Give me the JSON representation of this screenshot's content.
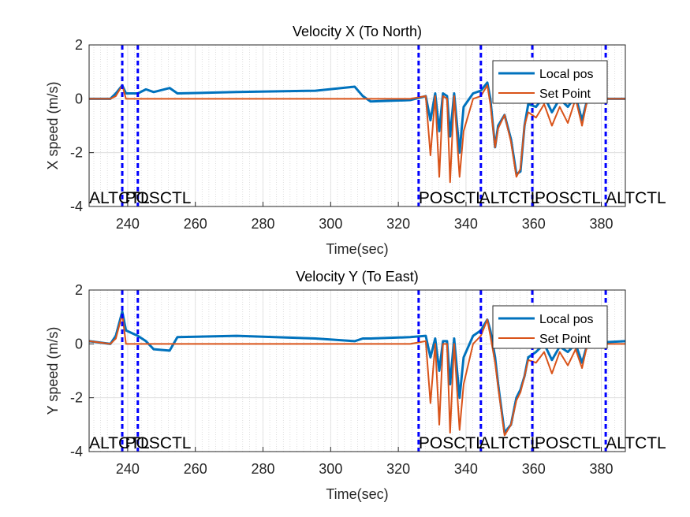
{
  "chart_data": [
    {
      "type": "line",
      "title": "Velocity X (To North)",
      "xlabel": "Time(sec)",
      "ylabel": "X speed (m/s)",
      "x": [
        228.6,
        234.9,
        236.5,
        238.4,
        239.5,
        243.0,
        245.4,
        247.7,
        252.4,
        254.7,
        272.2,
        295.5,
        307.1,
        309.5,
        311.8,
        323.5,
        328.1,
        329.5,
        330.9,
        332.1,
        333.2,
        334.4,
        335.3,
        336.5,
        338.1,
        339.3,
        342.1,
        344.4,
        346.3,
        347.2,
        348.6,
        349.5,
        351.4,
        353.3,
        354.9,
        356.1,
        357.3,
        358.4,
        360.7,
        363.1,
        365.4,
        367.7,
        370.1,
        372.4,
        374.3,
        375.9,
        379.4,
        387.1
      ],
      "series": [
        {
          "name": "Local pos",
          "color": "#0072bd",
          "values": [
            0,
            0,
            0.2,
            0.5,
            0.2,
            0.2,
            0.35,
            0.25,
            0.4,
            0.2,
            0.25,
            0.3,
            0.45,
            0.1,
            -0.1,
            -0.05,
            0.1,
            -0.8,
            0.2,
            -1.2,
            0.2,
            0.1,
            -1.4,
            0.2,
            -2.0,
            -0.3,
            0.2,
            0.3,
            0.6,
            0,
            -1.8,
            -1.0,
            -0.6,
            -1.5,
            -2.8,
            -2.7,
            -1.0,
            -0.2,
            -0.3,
            0.1,
            -0.5,
            0,
            -0.3,
            0.1,
            -0.8,
            0,
            0,
            0
          ]
        },
        {
          "name": "Set Point",
          "color": "#d95319",
          "values": [
            0,
            0,
            0.1,
            0.5,
            0,
            0,
            0,
            0,
            0,
            0,
            0,
            0,
            0,
            0,
            0,
            0,
            0.1,
            -2.1,
            0.1,
            -2.9,
            0.1,
            0,
            -3.1,
            0.1,
            -2.9,
            -1.2,
            0,
            0.1,
            0.5,
            -0.2,
            -1.8,
            -1.1,
            -0.6,
            -1.6,
            -2.9,
            -2.6,
            -1.0,
            -0.5,
            -0.7,
            -0.2,
            -1.0,
            -0.3,
            -0.9,
            0,
            -1.0,
            0,
            0,
            0
          ]
        }
      ],
      "xlim": [
        228.6,
        387.1
      ],
      "xticks": [
        240,
        260,
        280,
        300,
        320,
        340,
        360,
        380
      ],
      "ylim": [
        -4,
        2
      ],
      "yticks": [
        -4,
        -2,
        0,
        2
      ],
      "grid": true,
      "minor_grid": true,
      "legend": "northeast",
      "mode_lines": [
        238.4,
        243.0,
        326.0,
        344.4,
        359.6,
        381.3
      ],
      "mode_line_color": "#0000ff",
      "mode_labels": [
        {
          "x": 228.6,
          "label": "ALTCTL"
        },
        {
          "x": 239.2,
          "label": "POSCTL"
        },
        {
          "x": 326.0,
          "label": "POSCTL"
        },
        {
          "x": 343.9,
          "label": "ALTCTL"
        },
        {
          "x": 360.3,
          "label": "POSCTL"
        },
        {
          "x": 381.3,
          "label": "ALTCTL"
        }
      ]
    },
    {
      "type": "line",
      "title": "Velocity Y (To East)",
      "xlabel": "Time(sec)",
      "ylabel": "Y speed (m/s)",
      "x": [
        228.6,
        234.9,
        236.5,
        238.4,
        239.5,
        243.0,
        245.4,
        247.7,
        252.4,
        254.7,
        272.2,
        295.5,
        307.1,
        309.5,
        311.8,
        323.5,
        328.1,
        329.5,
        330.9,
        332.1,
        333.2,
        334.4,
        335.3,
        336.5,
        338.1,
        339.3,
        342.1,
        344.4,
        346.3,
        347.2,
        348.6,
        349.5,
        351.4,
        353.3,
        354.9,
        356.1,
        357.3,
        358.4,
        360.7,
        363.1,
        365.4,
        367.7,
        370.1,
        372.4,
        374.3,
        375.9,
        379.4,
        387.1
      ],
      "series": [
        {
          "name": "Local pos",
          "color": "#0072bd",
          "values": [
            0.1,
            0,
            0.3,
            1.2,
            0.5,
            0.3,
            0.1,
            -0.2,
            -0.25,
            0.25,
            0.3,
            0.2,
            0.1,
            0.2,
            0.2,
            0.25,
            0.3,
            -0.5,
            0.2,
            -1.0,
            0.1,
            0.1,
            -1.5,
            0.2,
            -2.0,
            -0.5,
            0.3,
            0.5,
            0.9,
            0.5,
            -0.5,
            -1.5,
            -3.3,
            -3.0,
            -2.0,
            -1.7,
            -1.2,
            -0.5,
            -0.3,
            0,
            -0.6,
            -0.1,
            -0.3,
            0,
            -0.7,
            0,
            0.05,
            0.1
          ]
        },
        {
          "name": "Set Point",
          "color": "#d95319",
          "values": [
            0.1,
            0,
            0.2,
            1.1,
            0,
            0,
            0,
            0,
            0,
            0,
            0,
            0,
            0,
            0,
            0,
            0,
            0.1,
            -2.2,
            0,
            -3.0,
            0,
            0,
            -3.3,
            0,
            -3.2,
            -1.5,
            0,
            0.3,
            0.9,
            0.3,
            -0.7,
            -1.6,
            -3.4,
            -3.0,
            -2.1,
            -1.8,
            -1.2,
            -0.6,
            -0.7,
            -0.3,
            -1.1,
            -0.3,
            -0.8,
            -0.2,
            -0.9,
            0,
            0,
            0
          ]
        }
      ],
      "xlim": [
        228.6,
        387.1
      ],
      "xticks": [
        240,
        260,
        280,
        300,
        320,
        340,
        360,
        380
      ],
      "ylim": [
        -4,
        2
      ],
      "yticks": [
        -4,
        -2,
        0,
        2
      ],
      "grid": true,
      "minor_grid": true,
      "legend": "northeast",
      "mode_lines": [
        238.4,
        243.0,
        326.0,
        344.4,
        359.6,
        381.3
      ],
      "mode_line_color": "#0000ff",
      "mode_labels": [
        {
          "x": 228.6,
          "label": "ALTCTL"
        },
        {
          "x": 239.2,
          "label": "POSCTL"
        },
        {
          "x": 326.0,
          "label": "POSCTL"
        },
        {
          "x": 343.9,
          "label": "ALTCTL"
        },
        {
          "x": 360.3,
          "label": "POSCTL"
        },
        {
          "x": 381.3,
          "label": "ALTCTL"
        }
      ]
    }
  ]
}
